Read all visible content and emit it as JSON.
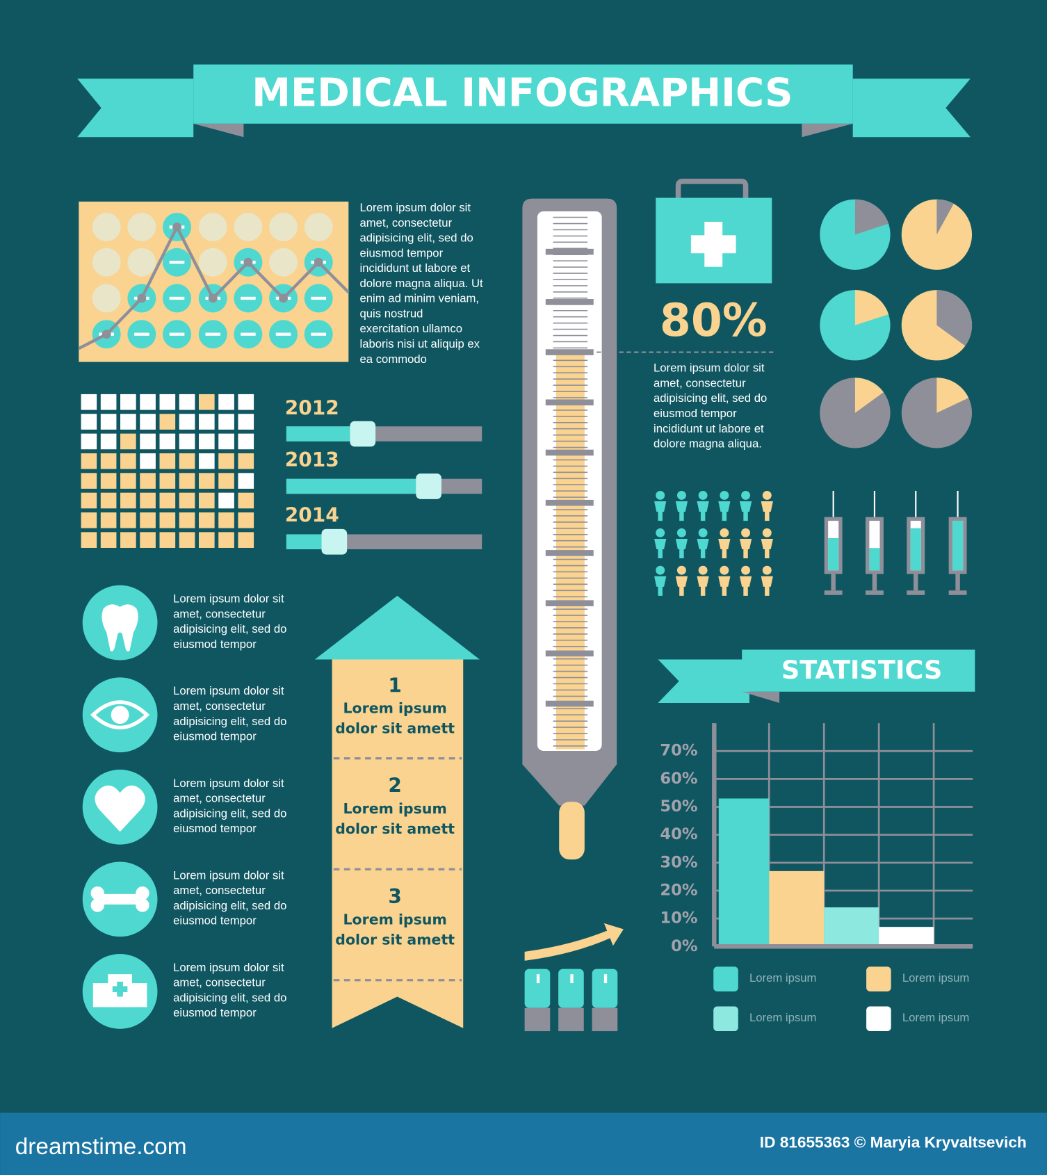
{
  "header": {
    "title": "MEDICAL INFOGRAPHICS"
  },
  "intro_lines": [
    "Lorem ipsum dolor sit",
    "amet, consectetur",
    "adipisicing elit, sed do",
    "eiusmod tempor",
    "incididunt ut labore et",
    "dolore magna aliqua. Ut",
    "enim ad minim veniam,",
    "quis nostrud",
    "exercitation ullamco",
    "laboris nisi ut aliquip ex",
    "ea commodo"
  ],
  "years": [
    "2012",
    "2013",
    "2014"
  ],
  "percent_block": {
    "figure": "80%",
    "lines": [
      "Lorem ipsum dolor sit",
      "amet, consectetur",
      "adipisicing elit, sed do",
      "eiusmod tempor",
      "incididunt ut labore et",
      "dolore magna aliqua."
    ]
  },
  "icon_texts": [
    [
      "Lorem ipsum dolor sit",
      "amet, consectetur",
      "adipisicing elit, sed do",
      "eiusmod tempor"
    ],
    [
      "Lorem ipsum dolor sit",
      "amet, consectetur",
      "adipisicing elit, sed do",
      "eiusmod tempor"
    ],
    [
      "Lorem ipsum dolor sit",
      "amet, consectetur",
      "adipisicing elit, sed do",
      "eiusmod tempor"
    ],
    [
      "Lorem ipsum dolor sit",
      "amet, consectetur",
      "adipisicing elit, sed do",
      "eiusmod tempor"
    ],
    [
      "Lorem ipsum dolor sit",
      "amet, consectetur",
      "adipisicing elit, sed do",
      "eiusmod tempor"
    ]
  ],
  "steps": [
    {
      "number": "1",
      "lines": [
        "Lorem ipsum",
        "dolor sit amett"
      ]
    },
    {
      "number": "2",
      "lines": [
        "Lorem ipsum",
        "dolor sit amett"
      ]
    },
    {
      "number": "3",
      "lines": [
        "Lorem ipsum",
        "dolor sit amett"
      ]
    }
  ],
  "statistics": {
    "title": "STATISTICS"
  },
  "chart_data": {
    "type": "bar",
    "categories": [
      null,
      null,
      null,
      null
    ],
    "series": [
      {
        "name": "Lorem ipsum",
        "color": "#4fd8cf",
        "values": [
          53,
          null,
          null,
          null
        ]
      },
      {
        "name": "Lorem ipsum",
        "color": "#f9d38f",
        "values": [
          null,
          27,
          null,
          null
        ]
      },
      {
        "name": "Lorem ipsum",
        "color": "#8de8df",
        "values": [
          null,
          null,
          14,
          null
        ]
      },
      {
        "name": "Lorem ipsum",
        "color": "#ffffff",
        "values": [
          null,
          null,
          null,
          7
        ]
      }
    ],
    "ylim": [
      0,
      80
    ],
    "yticks": [
      {
        "value": 0,
        "label": "0%"
      },
      {
        "value": 10,
        "label": "10%"
      },
      {
        "value": 20,
        "label": "20%"
      },
      {
        "value": 30,
        "label": "30%"
      },
      {
        "value": 40,
        "label": "40%"
      },
      {
        "value": 50,
        "label": "50%"
      },
      {
        "value": 60,
        "label": "60%"
      },
      {
        "value": 70,
        "label": "70%"
      }
    ],
    "grid": true
  },
  "footer": {
    "site": "dreamstime.com",
    "credit": "ID 81655363 © Maryia Kryvaltsevich"
  }
}
